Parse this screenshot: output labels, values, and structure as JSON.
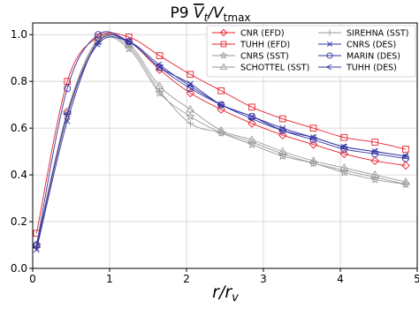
{
  "chart_data": {
    "type": "line",
    "title": "P9 V̄t/Vtmax",
    "title_parts": {
      "prefix": "P9 ",
      "v": "V",
      "t": "t",
      "slash": "/V",
      "tmax": "tmax"
    },
    "xlabel": "r/rv",
    "xlabel_parts": {
      "r": "r",
      "slash": "/r",
      "v": "v"
    },
    "ylabel": "",
    "xlim": [
      0,
      5
    ],
    "ylim": [
      0.0,
      1.05
    ],
    "xticks": [
      "0",
      "1",
      "2",
      "3",
      "4",
      "5"
    ],
    "yticks": [
      "0.0",
      "0.2",
      "0.4",
      "0.6",
      "0.8",
      "1.0"
    ],
    "grid": true,
    "legend_position": "top-right",
    "series": [
      {
        "name": "CNR (EFD)",
        "color": "#e8202a",
        "marker": "diamond",
        "x": [
          0.05,
          0.45,
          0.85,
          1.25,
          1.65,
          2.05,
          2.45,
          2.85,
          3.25,
          3.65,
          4.05,
          4.45,
          4.85
        ],
        "y": [
          0.1,
          0.67,
          0.98,
          0.97,
          0.85,
          0.75,
          0.68,
          0.62,
          0.57,
          0.53,
          0.49,
          0.46,
          0.44
        ]
      },
      {
        "name": "TUHH (EFD)",
        "color": "#e8202a",
        "marker": "square",
        "x": [
          0.05,
          0.45,
          0.85,
          1.25,
          1.65,
          2.05,
          2.45,
          2.85,
          3.25,
          3.65,
          4.05,
          4.45,
          4.85
        ],
        "y": [
          0.15,
          0.8,
          0.99,
          0.99,
          0.91,
          0.83,
          0.76,
          0.69,
          0.64,
          0.6,
          0.56,
          0.54,
          0.51
        ]
      },
      {
        "name": "CNRS (SST)",
        "color": "#9a9a9a",
        "marker": "star",
        "x": [
          0.05,
          0.45,
          0.85,
          1.25,
          1.65,
          2.05,
          2.45,
          2.85,
          3.25,
          3.65,
          4.05,
          4.45,
          4.85
        ],
        "y": [
          0.1,
          0.66,
          0.97,
          0.94,
          0.75,
          0.65,
          0.58,
          0.53,
          0.48,
          0.45,
          0.41,
          0.38,
          0.36
        ]
      },
      {
        "name": "SCHOTTEL (SST)",
        "color": "#9a9a9a",
        "marker": "triangle",
        "x": [
          0.05,
          0.45,
          0.85,
          1.25,
          1.65,
          2.05,
          2.45,
          2.85,
          3.25,
          3.65,
          4.05,
          4.45,
          4.85
        ],
        "y": [
          0.1,
          0.67,
          0.98,
          0.96,
          0.78,
          0.68,
          0.59,
          0.55,
          0.5,
          0.46,
          0.43,
          0.4,
          0.37
        ]
      },
      {
        "name": "SIREHNA (SST)",
        "color": "#9a9a9a",
        "marker": "plus",
        "x": [
          0.05,
          0.45,
          0.85,
          1.25,
          1.65,
          2.05,
          2.45,
          2.85,
          3.25,
          3.65,
          4.05,
          4.45,
          4.85
        ],
        "y": [
          0.09,
          0.65,
          0.97,
          0.95,
          0.76,
          0.62,
          0.58,
          0.54,
          0.49,
          0.45,
          0.42,
          0.39,
          0.36
        ]
      },
      {
        "name": "CNRS (DES)",
        "color": "#3434a4",
        "marker": "x",
        "x": [
          0.05,
          0.45,
          0.85,
          1.25,
          1.65,
          2.05,
          2.45,
          2.85,
          3.25,
          3.65,
          4.05,
          4.45,
          4.85
        ],
        "y": [
          0.08,
          0.63,
          0.97,
          0.97,
          0.86,
          0.79,
          0.7,
          0.65,
          0.6,
          0.56,
          0.52,
          0.5,
          0.48
        ]
      },
      {
        "name": "MARIN (DES)",
        "color": "#3434a4",
        "marker": "circle",
        "x": [
          0.05,
          0.45,
          0.85,
          1.25,
          1.65,
          2.05,
          2.45,
          2.85,
          3.25,
          3.65,
          4.05,
          4.45,
          4.85
        ],
        "y": [
          0.1,
          0.77,
          1.0,
          0.97,
          0.86,
          0.77,
          0.7,
          0.65,
          0.59,
          0.55,
          0.51,
          0.49,
          0.47
        ]
      },
      {
        "name": "TUHH (DES)",
        "color": "#3434a4",
        "marker": "tri_left",
        "x": [
          0.05,
          0.45,
          0.85,
          1.25,
          1.65,
          2.05,
          2.45,
          2.85,
          3.25,
          3.65,
          4.05,
          4.45,
          4.85
        ],
        "y": [
          0.09,
          0.66,
          0.96,
          0.97,
          0.87,
          0.78,
          0.7,
          0.64,
          0.59,
          0.56,
          0.52,
          0.5,
          0.48
        ]
      }
    ]
  }
}
